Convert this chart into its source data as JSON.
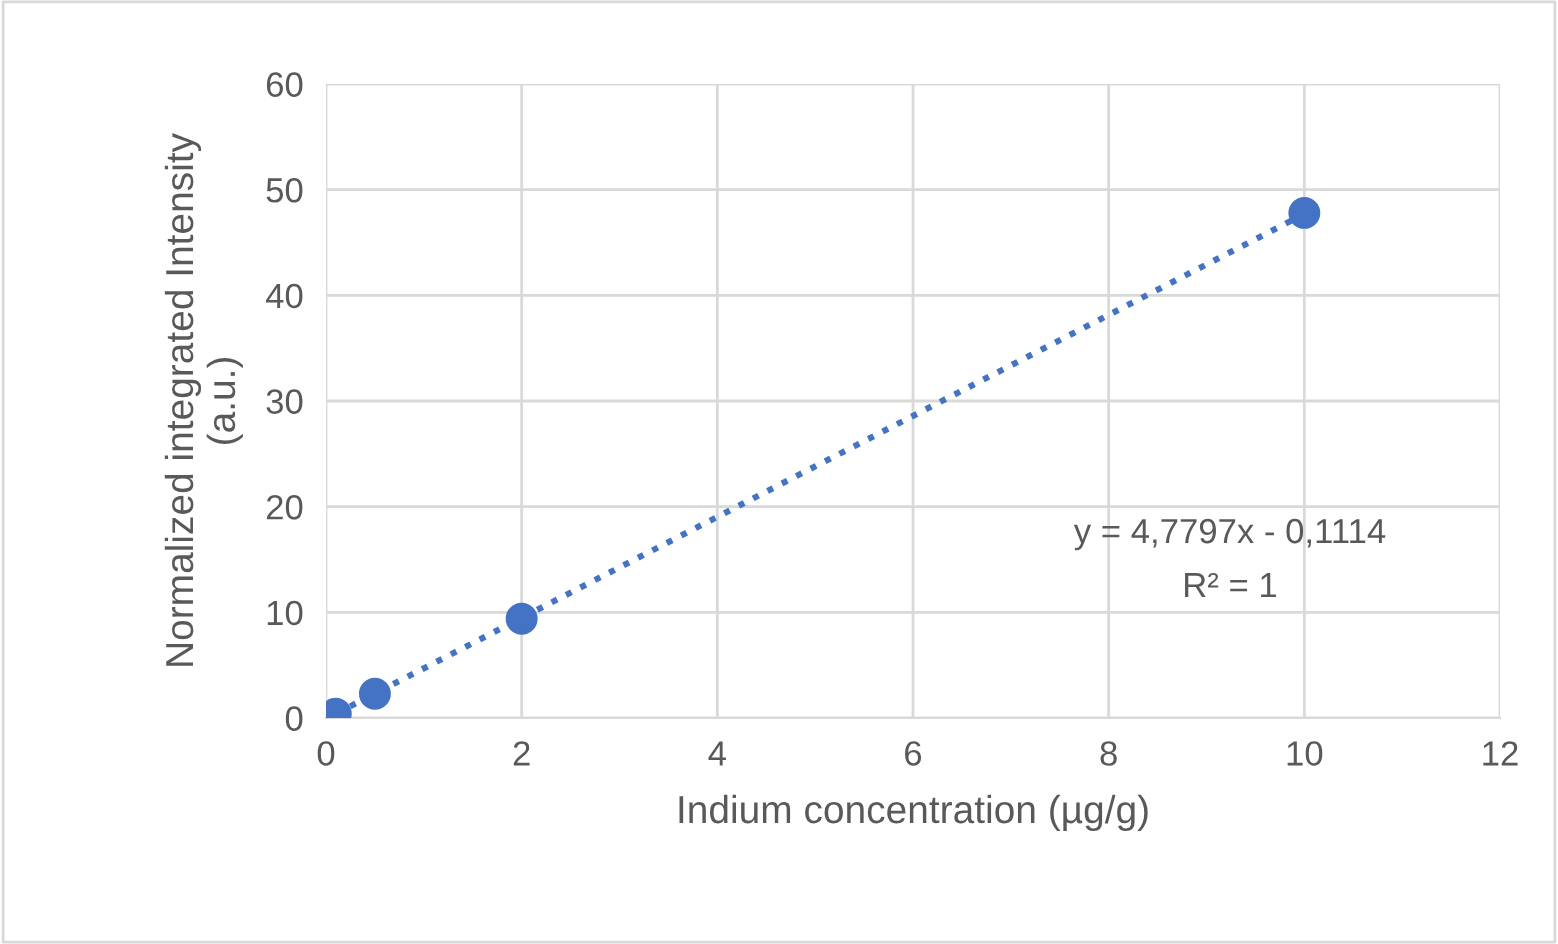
{
  "chart_data": {
    "type": "scatter",
    "xlabel": "Indium concentration (µg/g)",
    "ylabel": "Normalized integrated Intensity\n(a.u.)",
    "series": [
      {
        "color": "#4472c4",
        "marker": "circle",
        "x": [
          0.1,
          0.5,
          2,
          10
        ],
        "values": [
          0.4,
          2.3,
          9.4,
          47.8
        ]
      },
      {
        "type": "line",
        "color": "#4472c4",
        "x": [
          0.1,
          10
        ],
        "values": [
          0.4,
          47.7
        ],
        "line_style": "dotted"
      }
    ],
    "annotations": [
      "y = 4,7797x - 0,1114",
      "R² = 1"
    ],
    "xlim": [
      0,
      12
    ],
    "xticks": [
      0,
      2,
      4,
      6,
      8,
      10,
      12
    ],
    "ylim": [
      0,
      60
    ],
    "yticks": [
      0,
      10,
      20,
      30,
      40,
      50,
      60
    ],
    "grid": true
  }
}
